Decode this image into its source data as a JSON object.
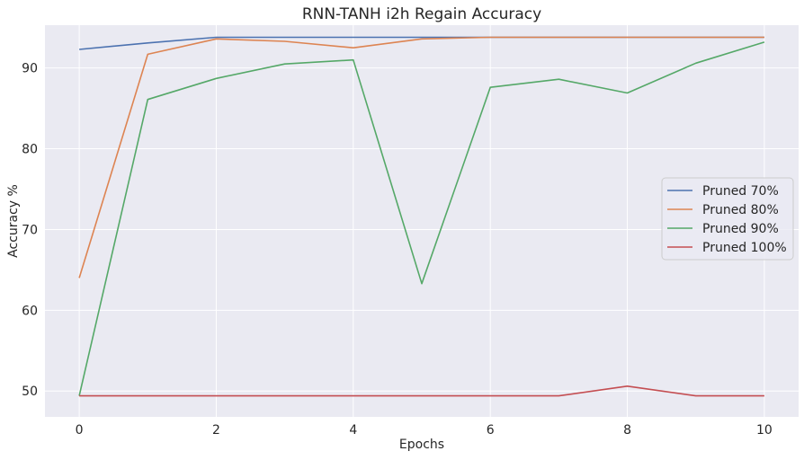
{
  "chart_data": {
    "type": "line",
    "title": "RNN-TANH i2h Regain Accuracy",
    "xlabel": "Epochs",
    "ylabel": "Accuracy %",
    "x": [
      0,
      1,
      2,
      3,
      4,
      5,
      6,
      7,
      8,
      9,
      10
    ],
    "xlim": [
      -0.5,
      10.5
    ],
    "ylim": [
      46.8,
      95.3
    ],
    "x_ticks": [
      0,
      2,
      4,
      6,
      8,
      10
    ],
    "y_ticks": [
      50,
      60,
      70,
      80,
      90
    ],
    "grid": true,
    "legend_position": "center-right",
    "background": "#eaeaf2",
    "series": [
      {
        "name": "Pruned 70%",
        "color": "#4c72b0",
        "values": [
          92.3,
          93.1,
          93.8,
          93.8,
          93.8,
          93.8,
          93.8,
          93.8,
          93.8,
          93.8,
          93.8
        ]
      },
      {
        "name": "Pruned 80%",
        "color": "#dd8452",
        "values": [
          64.0,
          91.7,
          93.6,
          93.3,
          92.5,
          93.6,
          93.8,
          93.8,
          93.8,
          93.8,
          93.8
        ]
      },
      {
        "name": "Pruned 90%",
        "color": "#55a868",
        "values": [
          49.4,
          86.1,
          88.7,
          90.5,
          91.0,
          63.3,
          87.6,
          88.6,
          86.9,
          90.6,
          93.2
        ]
      },
      {
        "name": "Pruned 100%",
        "color": "#c44e52",
        "values": [
          49.4,
          49.4,
          49.4,
          49.4,
          49.4,
          49.4,
          49.4,
          49.4,
          50.6,
          49.4,
          49.4
        ]
      }
    ]
  }
}
